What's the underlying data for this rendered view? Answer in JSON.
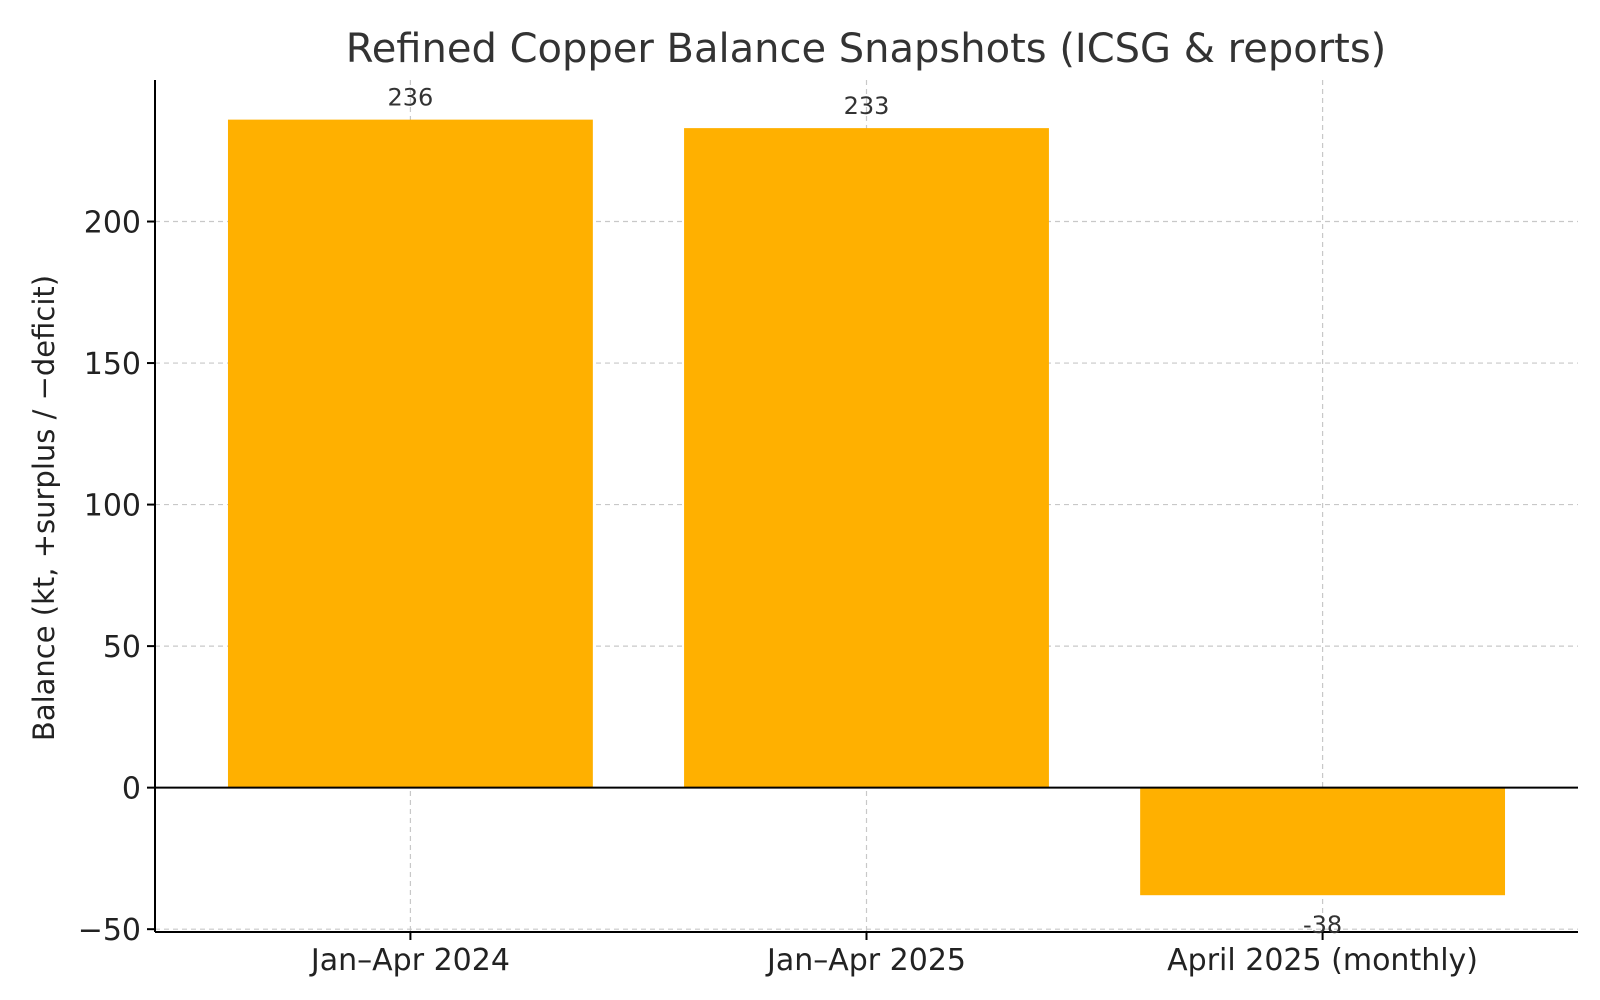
{
  "chart_data": {
    "type": "bar",
    "title": "Refined Copper Balance Snapshots (ICSG & reports)",
    "xlabel": "",
    "ylabel": "Balance (kt, +surplus / −deficit)",
    "categories": [
      "Jan–Apr 2024",
      "Jan–Apr 2025",
      "April 2025 (monthly)"
    ],
    "values": [
      236,
      233,
      -38
    ],
    "data_labels": [
      "236",
      "233",
      "-38"
    ],
    "ylim": [
      -51,
      250
    ],
    "yticks": [
      -50,
      0,
      50,
      100,
      150,
      200
    ],
    "ytick_labels": [
      "−50",
      "0",
      "50",
      "100",
      "150",
      "200"
    ],
    "bar_color": "#FFB000",
    "grid": true,
    "zero_line": true
  }
}
